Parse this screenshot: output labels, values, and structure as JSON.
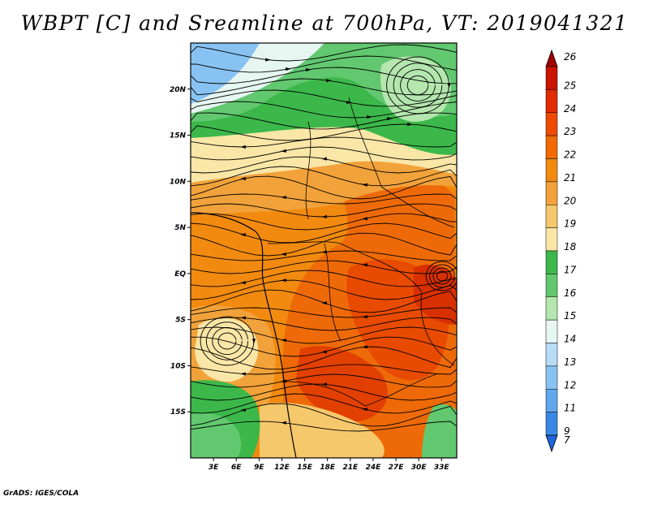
{
  "title": "WBPT [C] and Sreamline at 700hPa, VT: 2019041321",
  "footer": "GrADS: IGES/COLA",
  "map": {
    "lon_range": [
      0,
      35
    ],
    "lat_range": [
      -20,
      25
    ],
    "x_ticks": [
      "3E",
      "6E",
      "9E",
      "12E",
      "15E",
      "18E",
      "21E",
      "24E",
      "27E",
      "30E",
      "33E"
    ],
    "y_ticks": [
      "20N",
      "15N",
      "10N",
      "5N",
      "EQ",
      "5S",
      "10S",
      "15S"
    ],
    "field": "WBPT",
    "overlay": "streamlines"
  },
  "colorbar": {
    "levels": [
      "26",
      "25",
      "24",
      "23",
      "22",
      "21",
      "20",
      "19",
      "18",
      "17",
      "16",
      "15",
      "14",
      "13",
      "12",
      "11",
      "9",
      "7"
    ],
    "colors": [
      "#a00000",
      "#c81400",
      "#e02c00",
      "#ee4a00",
      "#f26a06",
      "#f28a10",
      "#f2a23a",
      "#f6c86c",
      "#fae6a6",
      "#3cb84a",
      "#62c870",
      "#b4e6ae",
      "#e6f6f0",
      "#b8dcf6",
      "#88c2f2",
      "#60a8ee",
      "#3a88e6",
      "#1e64dc"
    ]
  }
}
